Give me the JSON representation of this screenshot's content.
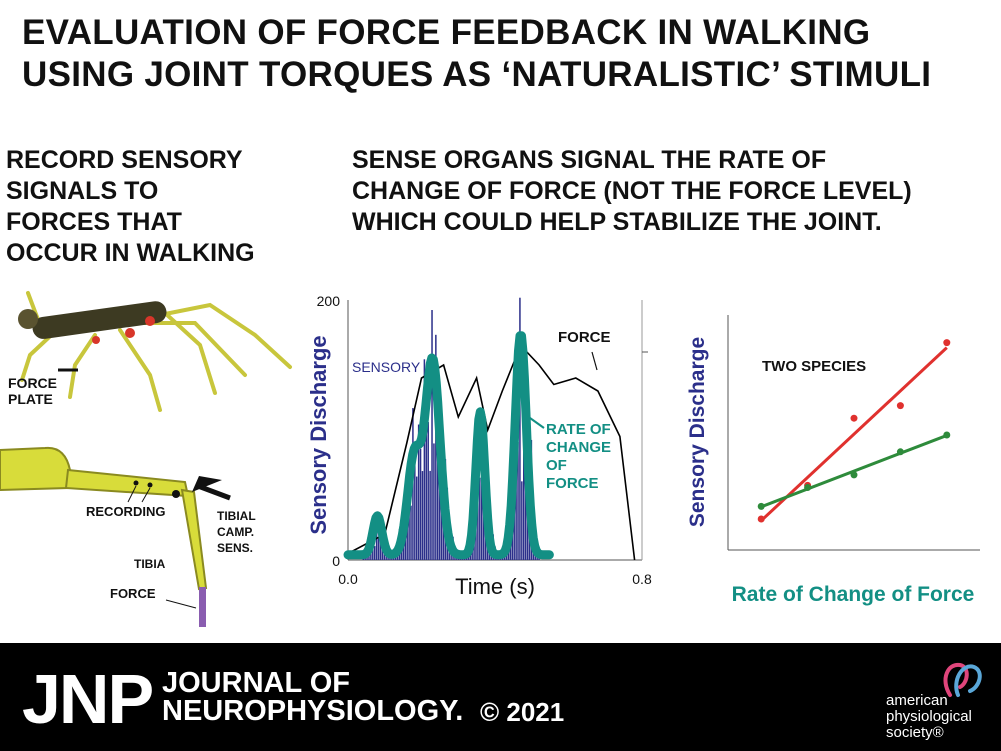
{
  "title": {
    "line1": "EVALUATION OF FORCE FEEDBACK IN WALKING",
    "line2": "USING JOINT TORQUES AS ‘NATURALISTIC’ STIMULI"
  },
  "left_caption": {
    "lines": [
      "RECORD SENSORY",
      "SIGNALS TO",
      "FORCES THAT",
      "OCCUR IN WALKING"
    ]
  },
  "right_caption": {
    "lines": [
      "SENSE ORGANS SIGNAL THE RATE OF",
      "CHANGE OF FORCE (NOT THE FORCE LEVEL)",
      "WHICH COULD HELP STABILIZE THE JOINT."
    ]
  },
  "illustration": {
    "force_plate_label_1": "FORCE",
    "force_plate_label_2": "PLATE",
    "recording_label": "RECORDING",
    "tibial_label_1": "TIBIAL",
    "tibial_label_2": "CAMP.",
    "tibial_label_3": "SENS.",
    "tibia_label": "TIBIA",
    "force_label": "FORCE",
    "colors": {
      "insect_body": "#3d3a22",
      "leg": "#c8c63c",
      "joint": "#d8362a",
      "force_bar": "#8a5db0"
    }
  },
  "chart_data": [
    {
      "type": "line",
      "xlabel": "Time (s)",
      "ylabel": "Sensory Discharge",
      "xlim": [
        0.0,
        0.8
      ],
      "ylim": [
        0,
        200
      ],
      "x_tick_labels": [
        "0.0",
        "0.8"
      ],
      "y_tick_labels": [
        "0",
        "200"
      ],
      "annotations": {
        "sensory": "SENSORY",
        "force": "FORCE",
        "rate_1": "RATE OF",
        "rate_2": "CHANGE",
        "rate_3": "OF",
        "rate_4": "FORCE"
      },
      "colors": {
        "histogram": "#2b2f8a",
        "rate_of_change": "#138f84",
        "force": "#000000",
        "ylabel": "#2b2f8a"
      }
    },
    {
      "type": "scatter",
      "title": "TWO SPECIES",
      "xlabel": "Rate of Change of Force",
      "ylabel": "Sensory Discharge",
      "series": [
        {
          "color": "#e0312e",
          "x": [
            1,
            3,
            5,
            7,
            9
          ],
          "y": [
            1.0,
            2.6,
            5.8,
            6.4,
            9.4
          ]
        },
        {
          "color": "#2e8b3b",
          "x": [
            1,
            3,
            5,
            7,
            9
          ],
          "y": [
            1.6,
            2.5,
            3.1,
            4.2,
            5.0
          ]
        }
      ],
      "colors": {
        "xlabel": "#138f84",
        "ylabel": "#2b2f8a"
      }
    }
  ],
  "footer": {
    "jnp": "JNP",
    "journal_line1": "JOURNAL OF",
    "journal_line2": "NEUROPHYSIOLOGY.",
    "copyright": "© 2021",
    "aps_line1": "american",
    "aps_line2": "physiological",
    "aps_line3": "society®"
  }
}
